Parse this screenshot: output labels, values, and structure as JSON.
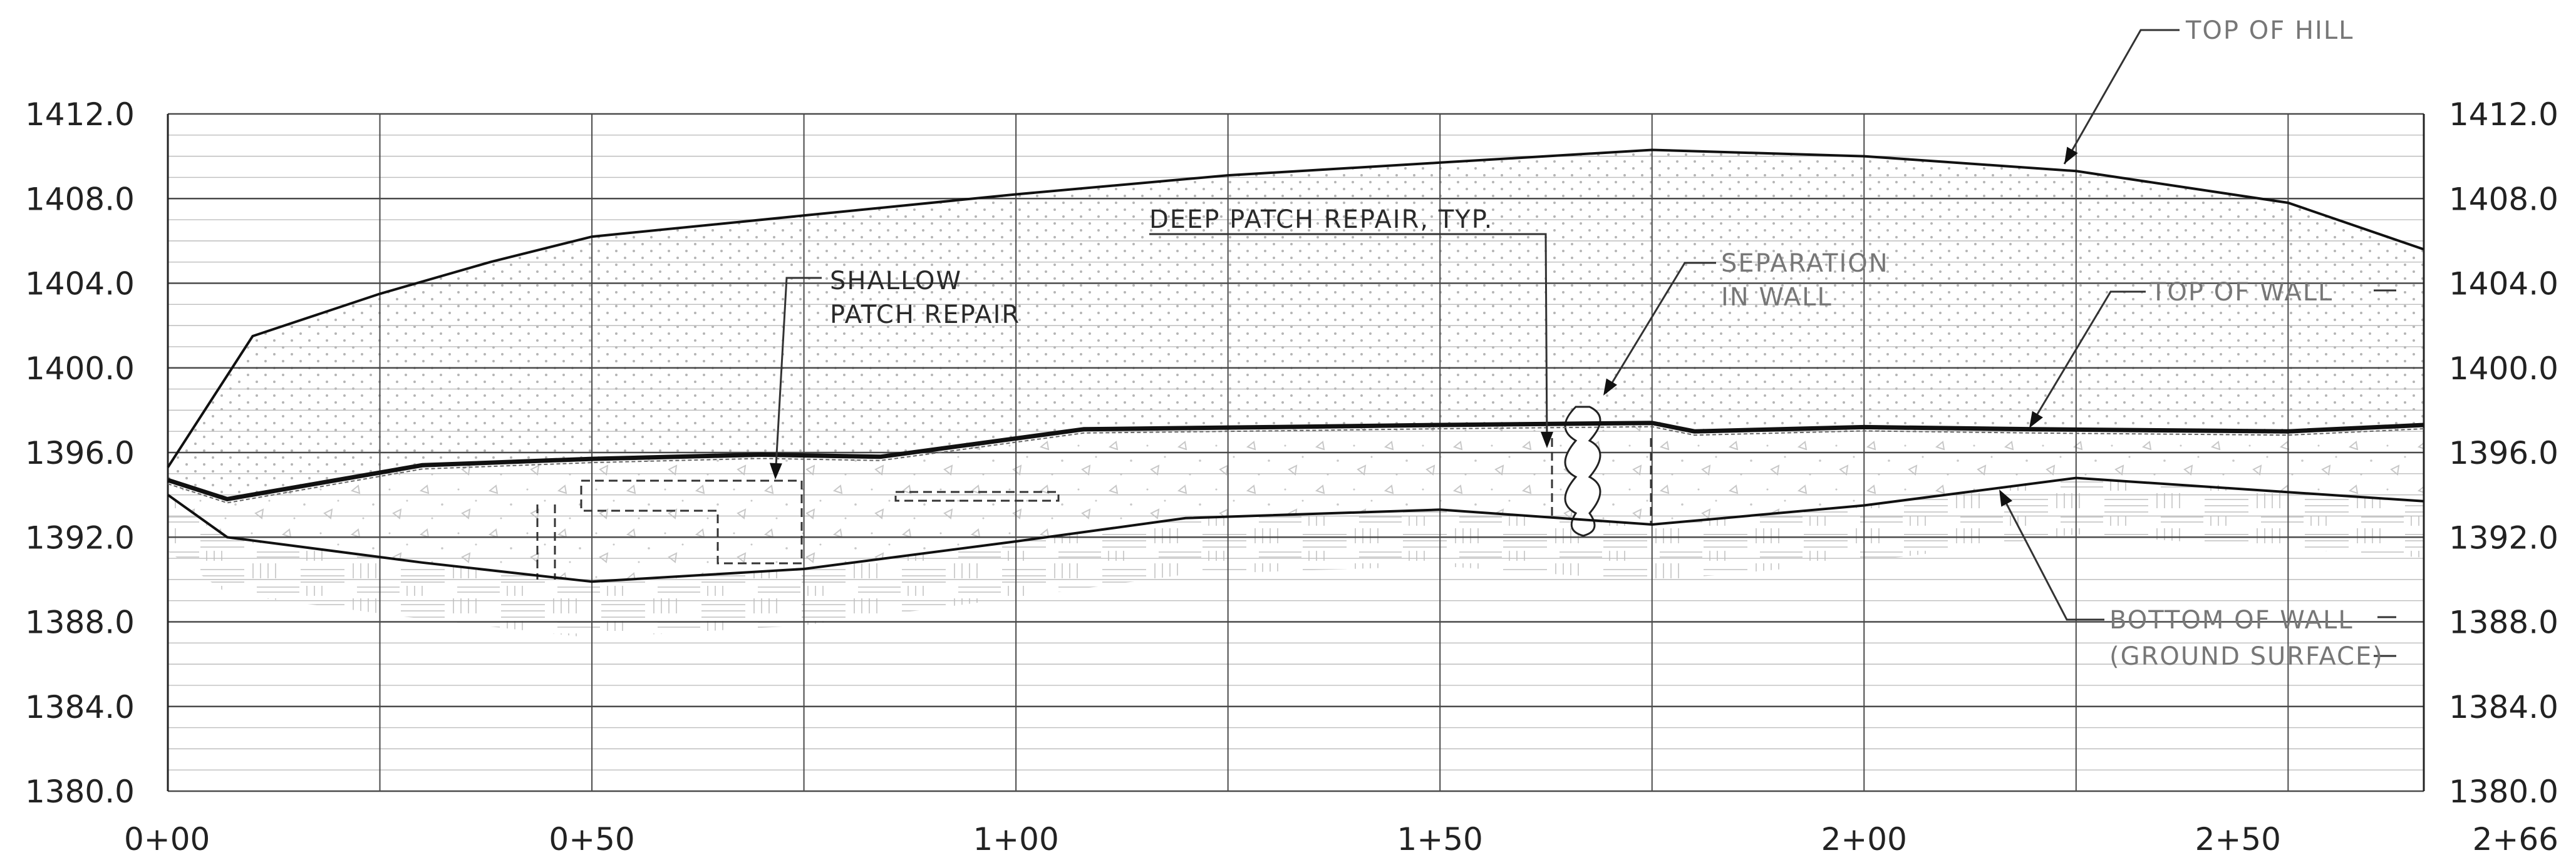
{
  "drawing": {
    "y_ticks": [
      "1412.0",
      "1408.0",
      "1404.0",
      "1400.0",
      "1396.0",
      "1392.0",
      "1388.0",
      "1384.0",
      "1380.0"
    ],
    "x_ticks": [
      "0+00",
      "0+50",
      "1+00",
      "1+50",
      "2+00",
      "2+50",
      "2+66"
    ],
    "annotations": {
      "top_of_hill": "TOP OF HILL",
      "deep_patch": "DEEP PATCH REPAIR, TYP.",
      "shallow_patch_1": "SHALLOW",
      "shallow_patch_2": "PATCH REPAIR",
      "separation_1": "SEPARATION",
      "separation_2": "IN WALL",
      "top_of_wall": "TOP OF WALL",
      "bottom_of_wall_1": "BOTTOM OF WALL",
      "bottom_of_wall_2": "(GROUND SURFACE)"
    }
  },
  "chart_data": {
    "type": "line",
    "xlabel": "",
    "ylabel": "",
    "xlim": [
      0,
      266
    ],
    "ylim": [
      1380,
      1412
    ],
    "x_tick_values": [
      0,
      50,
      100,
      150,
      200,
      250,
      266
    ],
    "y_tick_values": [
      1412,
      1408,
      1404,
      1400,
      1396,
      1392,
      1388,
      1384,
      1380
    ],
    "grid": true,
    "series": [
      {
        "name": "TOP OF HILL",
        "x": [
          0,
          10,
          25,
          38,
          50,
          75,
          100,
          125,
          150,
          175,
          200,
          225,
          250,
          266
        ],
        "y": [
          1395.3,
          1401.5,
          1403.5,
          1405.0,
          1406.2,
          1407.2,
          1408.2,
          1409.1,
          1409.7,
          1410.3,
          1410.0,
          1409.3,
          1407.8,
          1405.6
        ]
      },
      {
        "name": "TOP OF WALL",
        "x": [
          0,
          7,
          30,
          50,
          70,
          84,
          108,
          130,
          150,
          175,
          180,
          200,
          220,
          250,
          266
        ],
        "y": [
          1394.7,
          1393.8,
          1395.4,
          1395.7,
          1395.9,
          1395.8,
          1397.1,
          1397.2,
          1397.3,
          1397.4,
          1397.0,
          1397.2,
          1397.1,
          1397.0,
          1397.3
        ]
      },
      {
        "name": "BOTTOM OF WALL (GROUND SURFACE)",
        "x": [
          0,
          7,
          30,
          50,
          75,
          100,
          120,
          150,
          175,
          200,
          225,
          266
        ],
        "y": [
          1394.0,
          1392.0,
          1390.8,
          1389.9,
          1390.5,
          1391.8,
          1392.9,
          1393.3,
          1392.6,
          1393.5,
          1394.8,
          1393.7
        ]
      }
    ]
  }
}
